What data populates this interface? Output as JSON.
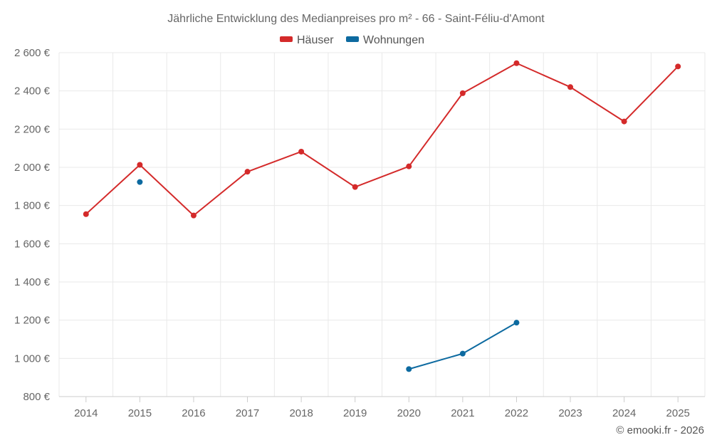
{
  "chart_data": {
    "type": "line",
    "title": "Jährliche Entwicklung des Medianpreises pro m² - 66 - Saint-Féliu-d'Amont",
    "xlabel": "",
    "ylabel": "",
    "categories": [
      "2014",
      "2015",
      "2016",
      "2017",
      "2018",
      "2019",
      "2020",
      "2021",
      "2022",
      "2023",
      "2024",
      "2025"
    ],
    "ylim": [
      800,
      2600
    ],
    "y_ticks": [
      800,
      1000,
      1200,
      1400,
      1600,
      1800,
      2000,
      2200,
      2400,
      2600
    ],
    "y_tick_labels": [
      "800 €",
      "1 000 €",
      "1 200 €",
      "1 400 €",
      "1 600 €",
      "1 800 €",
      "2 000 €",
      "2 200 €",
      "2 400 €",
      "2 600 €"
    ],
    "grid": true,
    "legend_position": "top-center",
    "series": [
      {
        "name": "Häuser",
        "color": "#d42a2a",
        "values": [
          1755,
          2013,
          1748,
          1977,
          2082,
          1897,
          2005,
          2388,
          2545,
          2420,
          2240,
          2528
        ]
      },
      {
        "name": "Wohnungen",
        "color": "#0d6aa0",
        "values": [
          null,
          1923,
          null,
          null,
          null,
          null,
          944,
          1025,
          1187,
          null,
          null,
          null
        ]
      }
    ]
  },
  "credit": "© emooki.fr - 2026"
}
